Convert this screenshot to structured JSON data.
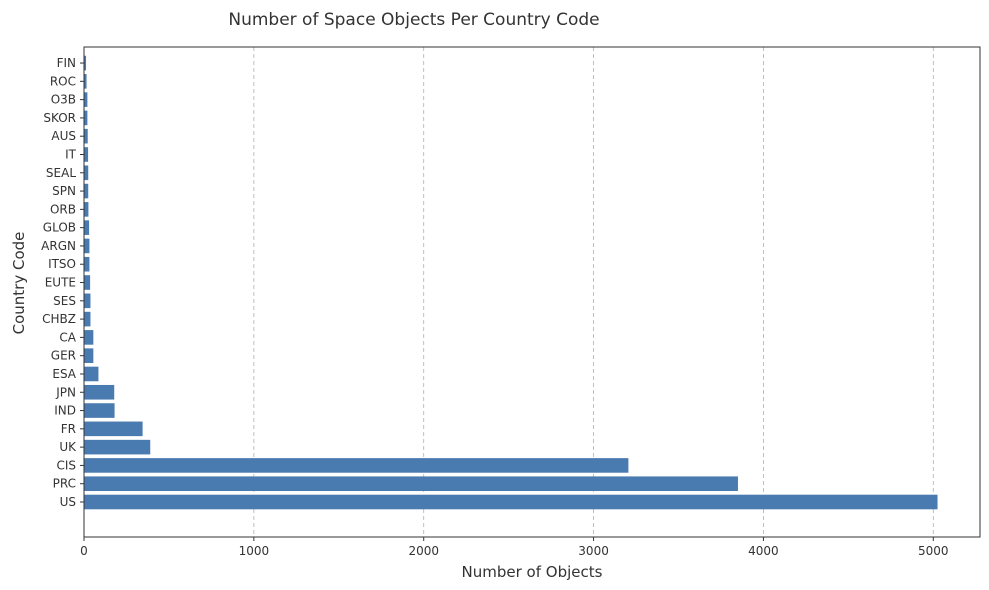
{
  "chart_data": {
    "type": "bar",
    "orientation": "horizontal",
    "title": "Number of Space Objects Per Country Code",
    "xlabel": "Number of Objects",
    "ylabel": "Country Code",
    "categories": [
      "US",
      "PRC",
      "CIS",
      "UK",
      "FR",
      "IND",
      "JPN",
      "ESA",
      "GER",
      "CA",
      "CHBZ",
      "SES",
      "EUTE",
      "ITSO",
      "ARGN",
      "GLOB",
      "ORB",
      "SPN",
      "SEAL",
      "IT",
      "AUS",
      "SKOR",
      "O3B",
      "ROC",
      "FIN"
    ],
    "values": [
      5025,
      3850,
      3205,
      390,
      345,
      180,
      178,
      85,
      55,
      55,
      38,
      38,
      36,
      32,
      32,
      30,
      26,
      25,
      25,
      24,
      22,
      20,
      20,
      15,
      12
    ],
    "xlim": [
      0,
      5275
    ],
    "xticks": [
      0,
      1000,
      2000,
      3000,
      4000,
      5000
    ],
    "grid": "x-dashed",
    "bar_color": "#4a7bb0",
    "grid_color": "#b0b0b0"
  }
}
